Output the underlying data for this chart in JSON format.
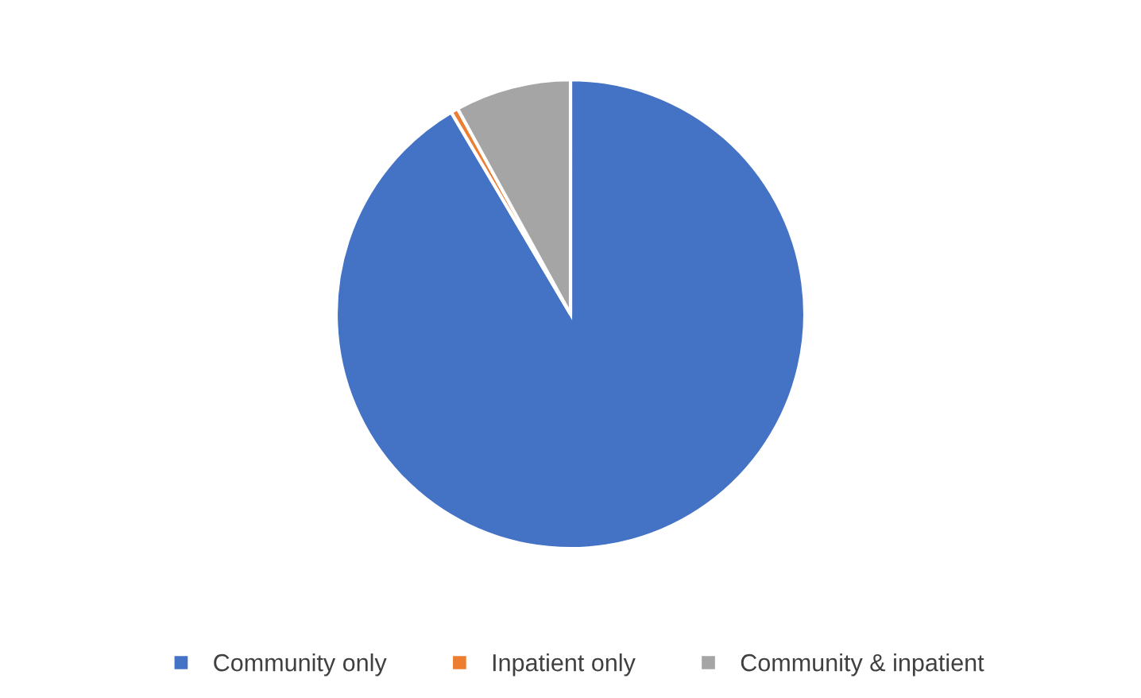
{
  "chart_data": {
    "type": "pie",
    "categories": [
      "Community only",
      "Inpatient only",
      "Community & inpatient"
    ],
    "values": [
      91.5,
      0.5,
      8.0
    ],
    "colors": [
      "#4472c4",
      "#ed7d31",
      "#a5a5a5"
    ],
    "legend": "bottom"
  }
}
